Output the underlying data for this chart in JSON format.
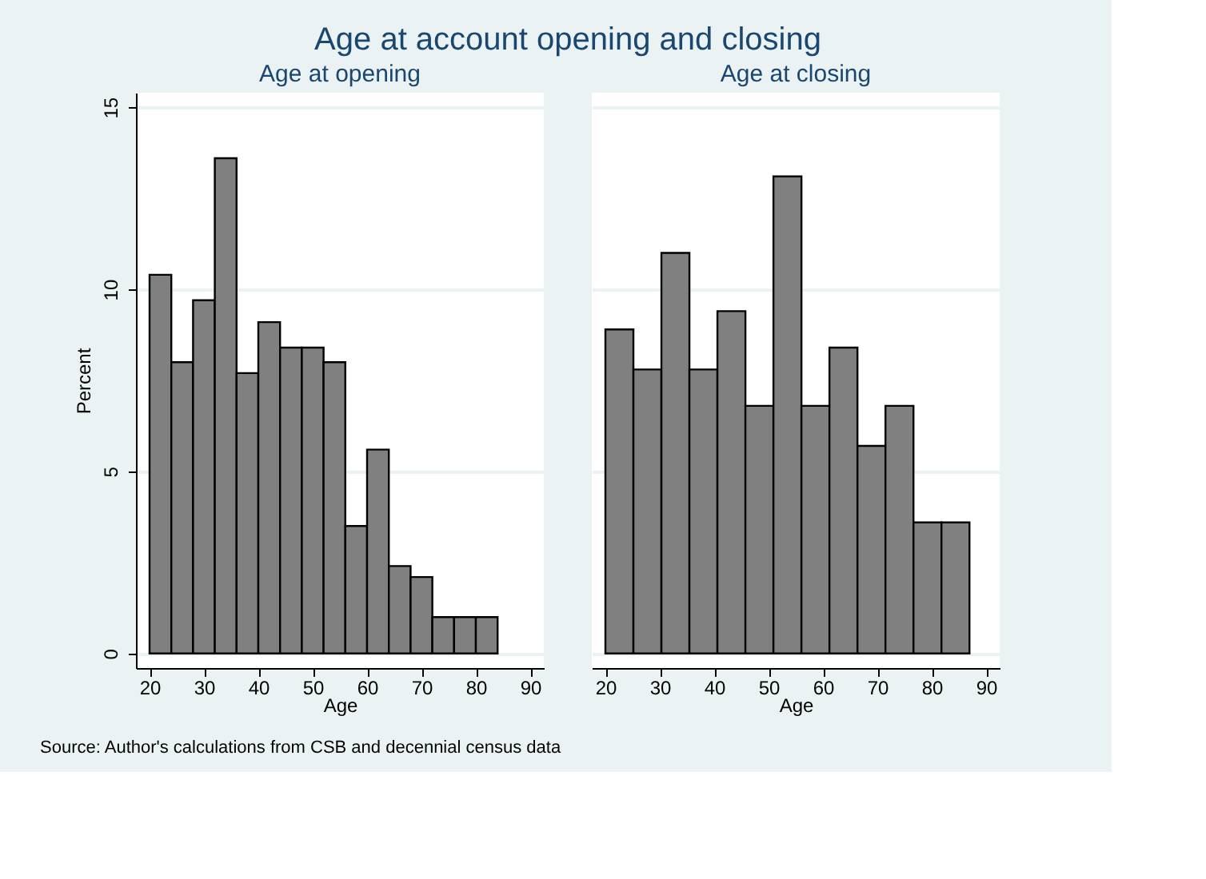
{
  "chart_data": [
    {
      "type": "histogram",
      "title": "Age at account opening and closing",
      "subtitle": "Age at opening",
      "xlabel": "Age",
      "ylabel": "Percent",
      "bins": [
        20,
        24,
        28,
        32,
        36,
        40,
        44,
        48,
        52,
        56,
        60,
        64,
        68,
        72,
        76,
        80,
        84
      ],
      "values": [
        10.4,
        8.0,
        9.7,
        13.6,
        7.7,
        9.1,
        8.4,
        8.4,
        8.0,
        3.5,
        5.6,
        2.4,
        2.1,
        1.0,
        1.0,
        1.0
      ],
      "color": "#808080",
      "xlim": [
        17.5,
        92.5
      ],
      "ylim": [
        -0.4,
        15.4
      ],
      "xticks": [
        20,
        30,
        40,
        50,
        60,
        70,
        80,
        90
      ],
      "yticks": [
        0,
        5,
        10,
        15
      ],
      "grid": "y",
      "annotations": [
        "Source: Author's calculations from CSB and decennial census data"
      ]
    },
    {
      "type": "histogram",
      "subtitle": "Age at closing",
      "xlabel": "Age",
      "bins": [
        20,
        25.15,
        30.3,
        35.45,
        40.6,
        45.75,
        50.9,
        56.05,
        61.2,
        66.35,
        71.5,
        76.65,
        81.8,
        86.95
      ],
      "values": [
        8.9,
        7.8,
        11.0,
        7.8,
        9.4,
        6.8,
        13.1,
        6.8,
        8.4,
        5.7,
        6.8,
        3.6,
        3.6
      ],
      "color": "#808080",
      "xlim": [
        17.5,
        92.5
      ],
      "ylim": [
        -0.4,
        15.4
      ],
      "xticks": [
        20,
        30,
        40,
        50,
        60,
        70,
        80,
        90
      ],
      "yticks": [
        0,
        5,
        10,
        15
      ],
      "grid": "y",
      "tick_labels": "x"
    }
  ]
}
